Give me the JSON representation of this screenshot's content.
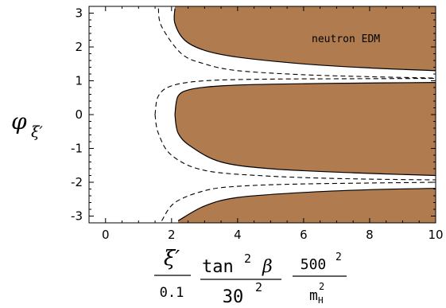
{
  "chart_data": {
    "type": "area",
    "title": "",
    "xlabel": {
      "xi": "ξ′",
      "xi_den": "0.1",
      "tan": "tan",
      "tan_exp": "2",
      "beta": "β",
      "tan_den_base": "30",
      "tan_den_exp": "2",
      "mass_num_base": "500",
      "mass_num_exp": "2",
      "mass_den_base": "m",
      "mass_den_sub": "H",
      "mass_den_exp": "2"
    },
    "ylabel": {
      "symbol": "φ",
      "sub": "ξ′"
    },
    "xlim": [
      -0.5,
      10
    ],
    "ylim": [
      -3.2,
      3.2
    ],
    "x_ticks": [
      0,
      2,
      4,
      6,
      8,
      10
    ],
    "x_tick_labels": [
      "0",
      "2",
      "4",
      "6",
      "8",
      "10"
    ],
    "y_ticks": [
      -3,
      -2,
      -1,
      0,
      1,
      2,
      3
    ],
    "y_tick_labels": [
      "-3",
      "-2",
      "-1",
      "0",
      "1",
      "2",
      "3"
    ],
    "annotation": "neutron EDM",
    "fill_color": "#b07c4f",
    "grid": false,
    "regions": [
      {
        "name": "",
        "boundary": [
          [
            2.1,
            3.14
          ],
          [
            2.1,
            2.7
          ],
          [
            2.4,
            2.2
          ],
          [
            3.0,
            1.9
          ],
          [
            4.0,
            1.7
          ],
          [
            6.0,
            1.5
          ],
          [
            8.0,
            1.38
          ],
          [
            10.0,
            1.3
          ]
        ],
        "excluded_boundary": [
          [
            1.6,
            3.14
          ],
          [
            1.7,
            2.6
          ],
          [
            2.3,
            1.8
          ],
          [
            3.0,
            1.5
          ],
          [
            4.0,
            1.3
          ],
          [
            6.0,
            1.18
          ],
          [
            8.0,
            1.12
          ],
          [
            10.0,
            1.08
          ]
        ]
      },
      {
        "name": "",
        "boundary": [
          [
            2.1,
            0.0
          ],
          [
            2.2,
            0.55
          ],
          [
            2.6,
            0.75
          ],
          [
            3.5,
            0.85
          ],
          [
            5.0,
            0.9
          ],
          [
            7.5,
            0.93
          ],
          [
            10.0,
            0.95
          ]
        ],
        "boundary_lower": [
          [
            2.1,
            0.0
          ],
          [
            2.2,
            -0.55
          ],
          [
            2.6,
            -0.95
          ],
          [
            3.5,
            -1.4
          ],
          [
            5.0,
            -1.6
          ],
          [
            7.5,
            -1.72
          ],
          [
            10.0,
            -1.8
          ]
        ],
        "excluded_boundary": [
          [
            1.5,
            0.0
          ],
          [
            1.6,
            0.55
          ],
          [
            2.0,
            0.85
          ],
          [
            3.0,
            1.0
          ],
          [
            5.0,
            1.05
          ],
          [
            7.5,
            1.06
          ],
          [
            10.0,
            1.07
          ]
        ],
        "excluded_boundary_lower": [
          [
            1.5,
            0.0
          ],
          [
            1.6,
            -0.55
          ],
          [
            2.0,
            -1.2
          ],
          [
            3.0,
            -1.65
          ],
          [
            5.0,
            -1.82
          ],
          [
            7.5,
            -1.9
          ],
          [
            10.0,
            -1.93
          ]
        ]
      },
      {
        "name": "",
        "boundary": [
          [
            2.2,
            -3.14
          ],
          [
            3.0,
            -2.7
          ],
          [
            4.0,
            -2.45
          ],
          [
            6.0,
            -2.3
          ],
          [
            8.0,
            -2.22
          ],
          [
            10.0,
            -2.18
          ]
        ],
        "excluded_boundary": [
          [
            1.7,
            -3.14
          ],
          [
            2.1,
            -2.6
          ],
          [
            3.0,
            -2.25
          ],
          [
            4.0,
            -2.12
          ],
          [
            6.0,
            -2.05
          ],
          [
            10.0,
            -2.0
          ]
        ]
      }
    ]
  }
}
